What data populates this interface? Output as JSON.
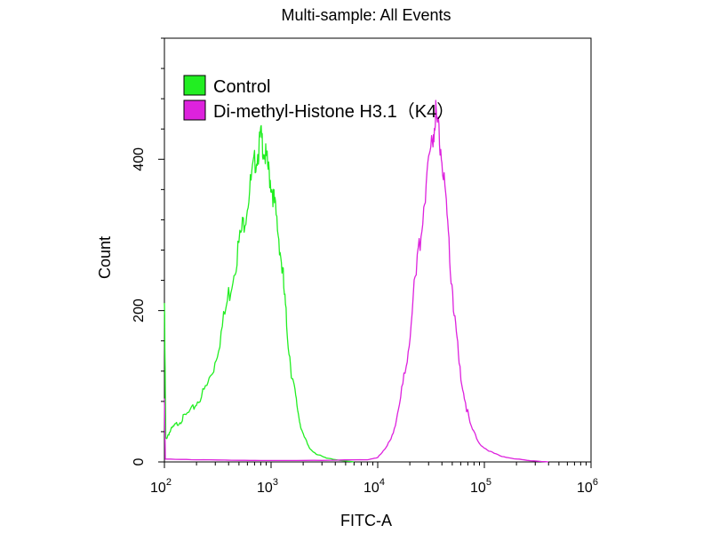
{
  "chart_data": {
    "type": "line",
    "title": "Multi-sample: All Events",
    "xlabel": "FITC-A",
    "ylabel": "Count",
    "x_scale": "log",
    "xlim": [
      100,
      1000000
    ],
    "ylim": [
      0,
      560
    ],
    "x_ticks": [
      {
        "value": 100,
        "base": "10",
        "exp": "2"
      },
      {
        "value": 1000,
        "base": "10",
        "exp": "3"
      },
      {
        "value": 10000,
        "base": "10",
        "exp": "4"
      },
      {
        "value": 100000,
        "base": "10",
        "exp": "5"
      },
      {
        "value": 1000000,
        "base": "10",
        "exp": "6"
      }
    ],
    "y_ticks": [
      {
        "value": 0,
        "label": "0"
      },
      {
        "value": 200,
        "label": "200"
      },
      {
        "value": 400,
        "label": "400"
      }
    ],
    "grid": false,
    "legend_position": "top-left",
    "series": [
      {
        "name": "Control",
        "color": "#22ee22",
        "points": [
          [
            100,
            210
          ],
          [
            103,
            30
          ],
          [
            110,
            38
          ],
          [
            120,
            45
          ],
          [
            135,
            52
          ],
          [
            150,
            58
          ],
          [
            180,
            68
          ],
          [
            210,
            82
          ],
          [
            250,
            100
          ],
          [
            290,
            125
          ],
          [
            340,
            170
          ],
          [
            400,
            220
          ],
          [
            460,
            262
          ],
          [
            520,
            300
          ],
          [
            580,
            330
          ],
          [
            640,
            365
          ],
          [
            700,
            395
          ],
          [
            760,
            410
          ],
          [
            800,
            430
          ],
          [
            850,
            415
          ],
          [
            900,
            400
          ],
          [
            960,
            380
          ],
          [
            1030,
            360
          ],
          [
            1100,
            330
          ],
          [
            1200,
            290
          ],
          [
            1300,
            240
          ],
          [
            1400,
            180
          ],
          [
            1550,
            120
          ],
          [
            1700,
            85
          ],
          [
            1850,
            55
          ],
          [
            2000,
            35
          ],
          [
            2300,
            18
          ],
          [
            2700,
            10
          ],
          [
            3300,
            5
          ],
          [
            4500,
            2
          ],
          [
            6000,
            0
          ]
        ]
      },
      {
        "name": "Di-methyl-Histone H3.1（K4）",
        "color": "#dd22dd",
        "points": [
          [
            100,
            80
          ],
          [
            102,
            4
          ],
          [
            200,
            3
          ],
          [
            500,
            2
          ],
          [
            1000,
            2
          ],
          [
            3000,
            2
          ],
          [
            8000,
            3
          ],
          [
            10000,
            6
          ],
          [
            12000,
            18
          ],
          [
            14000,
            40
          ],
          [
            16000,
            75
          ],
          [
            18500,
            130
          ],
          [
            21000,
            200
          ],
          [
            24000,
            270
          ],
          [
            27000,
            340
          ],
          [
            30000,
            400
          ],
          [
            33000,
            430
          ],
          [
            35000,
            462
          ],
          [
            37000,
            440
          ],
          [
            40000,
            400
          ],
          [
            44000,
            330
          ],
          [
            48000,
            260
          ],
          [
            53000,
            190
          ],
          [
            58000,
            130
          ],
          [
            65000,
            85
          ],
          [
            75000,
            45
          ],
          [
            90000,
            25
          ],
          [
            110000,
            14
          ],
          [
            140000,
            8
          ],
          [
            180000,
            5
          ],
          [
            250000,
            2
          ],
          [
            400000,
            0
          ]
        ]
      }
    ]
  }
}
